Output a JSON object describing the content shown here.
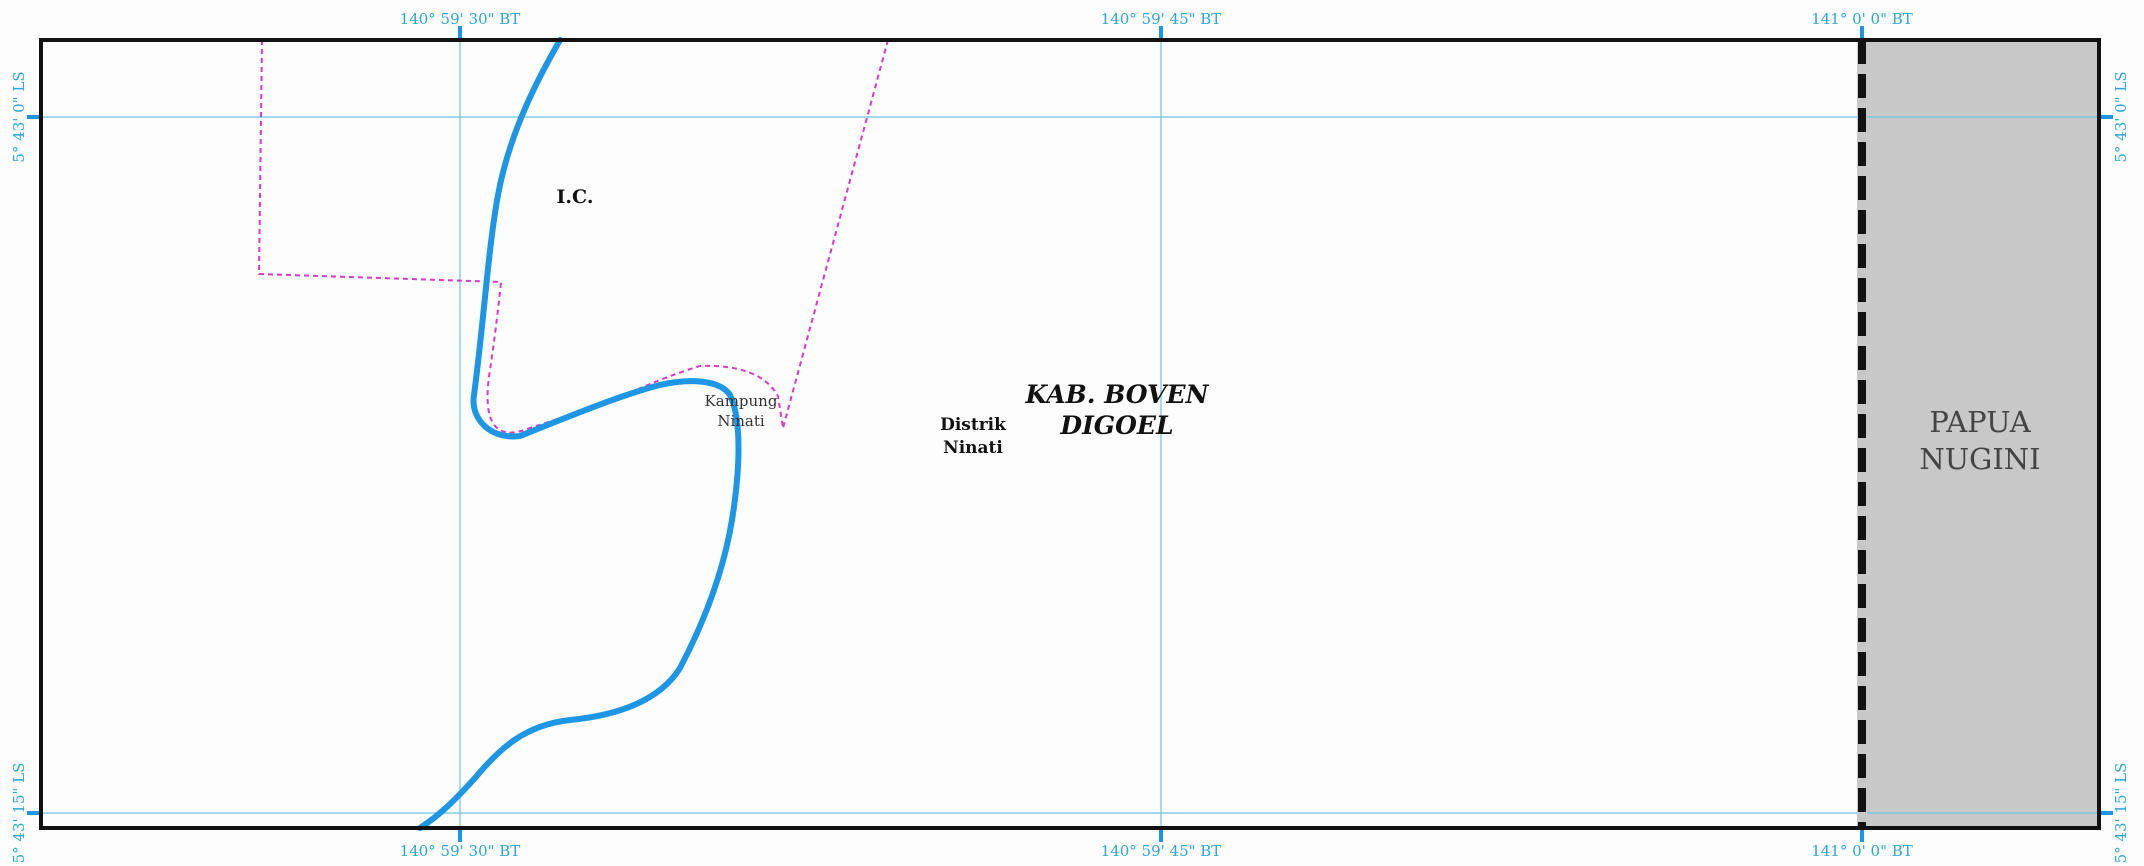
{
  "map": {
    "coords": {
      "lon_a": "140° 59' 30\" BT",
      "lon_b": "140° 59' 45\" BT",
      "lon_c": "141° 0' 0\" BT",
      "lat_top": "5° 43' 0\" LS",
      "lat_bottom": "5° 43' 15\" LS"
    },
    "labels": {
      "ic": "I.C.",
      "kampung_line1": "Kampung",
      "kampung_line2": "Ninati",
      "distrik_line1": "Distrik",
      "distrik_line2": "Ninati",
      "kab_line1": "KAB. BOVEN",
      "kab_line2": "DIGOEL",
      "country_line1": "PAPUA",
      "country_line2": "NUGINI"
    },
    "colors": {
      "river": "#1e96e6",
      "grid": "#6ec4e3",
      "coord_text": "#2aa7d6",
      "boundary_dashed": "#d63ac8",
      "frame": "#111111",
      "neighbor_fill": "#c8c8c8",
      "international_border": "#111111"
    }
  }
}
